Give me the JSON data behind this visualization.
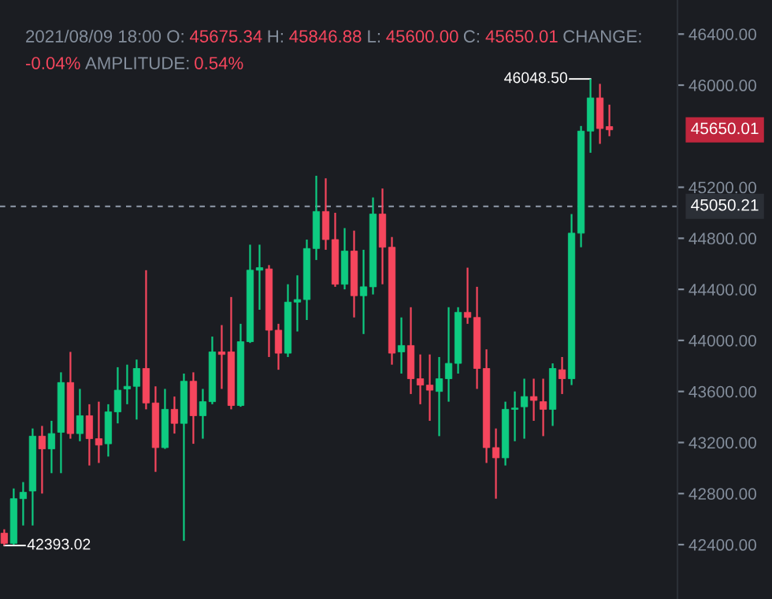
{
  "chart_data": {
    "type": "candlestick",
    "categories": [
      null,
      null,
      null,
      null,
      null,
      null,
      null,
      null,
      null,
      null,
      null,
      null,
      null,
      null,
      null,
      null,
      null,
      null,
      null,
      null,
      null,
      null,
      null,
      null,
      null,
      null,
      null,
      null,
      null,
      null,
      null,
      null,
      null,
      null,
      null,
      null,
      null,
      null,
      null,
      null,
      null,
      null,
      null,
      null,
      null,
      null,
      null,
      null,
      null,
      null,
      null,
      null,
      null,
      null,
      null,
      null,
      null,
      null,
      null,
      null,
      null,
      null,
      null,
      null,
      null
    ],
    "ohlc": [
      [
        42490,
        42520,
        42393.02,
        42410
      ],
      [
        42410,
        42840,
        42400,
        42760
      ],
      [
        42760,
        42890,
        42550,
        42810
      ],
      [
        42820,
        43310,
        42550,
        43250
      ],
      [
        43250,
        43330,
        42800,
        43150
      ],
      [
        43150,
        43370,
        42960,
        43270
      ],
      [
        43280,
        43750,
        42960,
        43670
      ],
      [
        43670,
        43910,
        43230,
        43270
      ],
      [
        43270,
        43620,
        43210,
        43410
      ],
      [
        43410,
        43500,
        43020,
        43230
      ],
      [
        43230,
        43520,
        43040,
        43180
      ],
      [
        43190,
        43500,
        43090,
        43440
      ],
      [
        43440,
        43790,
        43350,
        43610
      ],
      [
        43620,
        43810,
        43500,
        43640
      ],
      [
        43640,
        43850,
        43380,
        43780
      ],
      [
        43780,
        44550,
        43460,
        43510
      ],
      [
        43510,
        43640,
        42970,
        43160
      ],
      [
        43160,
        43620,
        43150,
        43460
      ],
      [
        43460,
        43560,
        43270,
        43350
      ],
      [
        43350,
        43740,
        42430,
        43680
      ],
      [
        43680,
        43750,
        43190,
        43410
      ],
      [
        43410,
        43620,
        43230,
        43520
      ],
      [
        43520,
        44030,
        43500,
        43910
      ],
      [
        43910,
        44120,
        43620,
        43890
      ],
      [
        43910,
        44340,
        43460,
        43490
      ],
      [
        43490,
        44130,
        43480,
        43990
      ],
      [
        43990,
        44750,
        43980,
        44550
      ],
      [
        44550,
        44750,
        44240,
        44570
      ],
      [
        44560,
        44590,
        43870,
        44080
      ],
      [
        44080,
        44130,
        43770,
        43900
      ],
      [
        43900,
        44440,
        43870,
        44300
      ],
      [
        44300,
        44510,
        44070,
        44320
      ],
      [
        44320,
        44790,
        44160,
        44720
      ],
      [
        44720,
        45290,
        44630,
        45010
      ],
      [
        45010,
        45270,
        44710,
        44790
      ],
      [
        44790,
        45000,
        44420,
        44440
      ],
      [
        44440,
        44880,
        44400,
        44700
      ],
      [
        44700,
        44860,
        44180,
        44350
      ],
      [
        44350,
        44710,
        44050,
        44420
      ],
      [
        44420,
        45120,
        44360,
        44990
      ],
      [
        44990,
        45190,
        44440,
        44730
      ],
      [
        44730,
        44810,
        43810,
        43900
      ],
      [
        43910,
        44180,
        43740,
        43960
      ],
      [
        43960,
        44260,
        43580,
        43700
      ],
      [
        43700,
        43890,
        43500,
        43650
      ],
      [
        43650,
        43890,
        43370,
        43610
      ],
      [
        43600,
        43870,
        43250,
        43700
      ],
      [
        43700,
        44260,
        43520,
        43820
      ],
      [
        43820,
        44260,
        43740,
        44220
      ],
      [
        44220,
        44570,
        44130,
        44180
      ],
      [
        44180,
        44420,
        43620,
        43780
      ],
      [
        43780,
        43930,
        43040,
        43160
      ],
      [
        43160,
        43310,
        42760,
        43080
      ],
      [
        43080,
        43520,
        43020,
        43460
      ],
      [
        43460,
        43600,
        43210,
        43470
      ],
      [
        43480,
        43700,
        43230,
        43560
      ],
      [
        43560,
        43700,
        43370,
        43530
      ],
      [
        43520,
        43700,
        43250,
        43460
      ],
      [
        43460,
        43820,
        43330,
        43780
      ],
      [
        43770,
        43870,
        43580,
        43700
      ],
      [
        43700,
        44990,
        43650,
        44840
      ],
      [
        44840,
        45680,
        44730,
        45640
      ],
      [
        45640,
        46048.5,
        45470,
        45900
      ],
      [
        45900,
        46010,
        45540,
        45660
      ],
      [
        45675.34,
        45846.88,
        45600.0,
        45650.01
      ]
    ],
    "colors": [
      "#f6465d",
      "#0ecb81",
      "#0ecb81",
      "#0ecb81",
      "#f6465d",
      "#0ecb81",
      "#0ecb81",
      "#f6465d",
      "#0ecb81",
      "#f6465d",
      "#f6465d",
      "#0ecb81",
      "#0ecb81",
      "#0ecb81",
      "#0ecb81",
      "#f6465d",
      "#f6465d",
      "#0ecb81",
      "#f6465d",
      "#0ecb81",
      "#f6465d",
      "#0ecb81",
      "#0ecb81",
      "#f6465d",
      "#f6465d",
      "#0ecb81",
      "#0ecb81",
      "#0ecb81",
      "#f6465d",
      "#f6465d",
      "#0ecb81",
      "#0ecb81",
      "#0ecb81",
      "#0ecb81",
      "#f6465d",
      "#f6465d",
      "#0ecb81",
      "#f6465d",
      "#0ecb81",
      "#0ecb81",
      "#f6465d",
      "#f6465d",
      "#0ecb81",
      "#f6465d",
      "#f6465d",
      "#f6465d",
      "#0ecb81",
      "#0ecb81",
      "#0ecb81",
      "#f6465d",
      "#f6465d",
      "#f6465d",
      "#f6465d",
      "#0ecb81",
      "#0ecb81",
      "#0ecb81",
      "#f6465d",
      "#f6465d",
      "#0ecb81",
      "#f6465d",
      "#0ecb81",
      "#0ecb81",
      "#0ecb81",
      "#f6465d",
      "#f6465d"
    ],
    "ylim": [
      41974,
      46667
    ],
    "yticks": [
      {
        "value": 42400,
        "label": "42400.00"
      },
      {
        "value": 42800,
        "label": "42800.00"
      },
      {
        "value": 43200,
        "label": "43200.00"
      },
      {
        "value": 43600,
        "label": "43600.00"
      },
      {
        "value": 44000,
        "label": "44000.00"
      },
      {
        "value": 44400,
        "label": "44400.00"
      },
      {
        "value": 44800,
        "label": "44800.00"
      },
      {
        "value": 45200,
        "label": "45200.00"
      },
      {
        "value": 46000,
        "label": "46000.00"
      },
      {
        "value": 46400,
        "label": "46400.00"
      }
    ],
    "ref_lines": [
      {
        "axis": "y",
        "value": 45050.21,
        "label": "45050.21",
        "color": "#848e9c",
        "line_style": "dashed"
      }
    ],
    "annotations": [
      "2021/08/09 18:00",
      "O:",
      "45675.34",
      "H:",
      "45846.88",
      "L:",
      "45600.00",
      "C:",
      "45650.01",
      "CHANGE:",
      "-0.04%",
      "AMPLITUDE:",
      "0.54%",
      "45650.01",
      "46048.50",
      "42393.02"
    ],
    "grid": false
  }
}
